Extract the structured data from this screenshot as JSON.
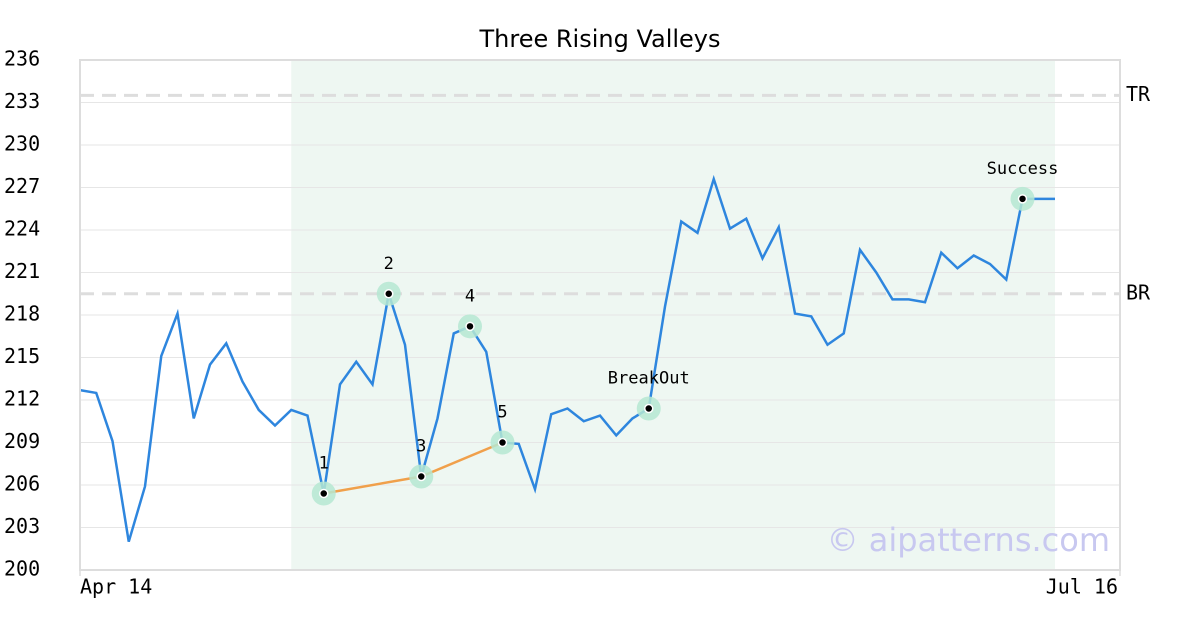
{
  "chart_data": {
    "type": "line",
    "title": "Three Rising Valleys",
    "x": [
      0,
      1,
      2,
      3,
      4,
      5,
      6,
      7,
      8,
      9,
      10,
      11,
      12,
      13,
      14,
      15,
      16,
      17,
      18,
      19,
      20,
      21,
      22,
      23,
      24,
      25,
      26,
      27,
      28,
      29,
      30,
      31,
      32,
      33,
      34,
      35,
      36,
      37,
      38,
      39,
      40,
      41,
      42,
      43,
      44,
      45,
      46,
      47,
      48,
      49,
      50,
      51,
      52,
      53,
      54,
      55,
      56,
      57,
      58,
      59,
      60
    ],
    "series": [
      {
        "color": "#2e86de",
        "values": [
          212.7,
          212.5,
          209.1,
          202.0,
          205.9,
          215.1,
          218.1,
          210.7,
          214.5,
          216.0,
          213.3,
          211.3,
          210.2,
          211.3,
          210.9,
          205.4,
          213.1,
          214.7,
          213.1,
          219.5,
          215.9,
          206.6,
          210.7,
          216.7,
          217.2,
          215.4,
          209.0,
          208.9,
          205.7,
          211.0,
          211.4,
          210.5,
          210.9,
          209.5,
          210.7,
          211.4,
          218.6,
          224.6,
          223.8,
          227.6,
          224.1,
          224.8,
          222.0,
          224.2,
          218.1,
          217.9,
          215.9,
          216.7,
          222.6,
          221.0,
          219.1,
          219.1,
          218.9,
          222.4,
          221.3,
          222.2,
          221.6,
          220.5,
          226.2,
          226.2,
          226.2
        ]
      }
    ],
    "xlim": [
      0,
      64
    ],
    "xticks": [
      {
        "value": 0,
        "label": "Apr 14"
      },
      {
        "value": 64,
        "label": "Jul 16"
      }
    ],
    "ylim": [
      200,
      236
    ],
    "yticks": [
      200,
      203,
      206,
      209,
      212,
      215,
      218,
      221,
      224,
      227,
      230,
      233,
      236
    ],
    "grid": true,
    "shaded_range": [
      13,
      60
    ],
    "shade_color": "#eef7f2",
    "levels": [
      {
        "label": "TR",
        "value": 233.5
      },
      {
        "label": "BR",
        "value": 219.5
      }
    ],
    "markers": [
      {
        "label": "1",
        "x": 15
      },
      {
        "label": "2",
        "x": 19
      },
      {
        "label": "3",
        "x": 21
      },
      {
        "label": "4",
        "x": 24
      },
      {
        "label": "5",
        "x": 26
      },
      {
        "label": "BreakOut",
        "x": 35
      },
      {
        "label": "Success",
        "x": 58
      }
    ],
    "trendline": {
      "x": [
        15,
        21,
        26
      ],
      "color": "#f0a04b"
    },
    "watermark": "© aipatterns.com"
  }
}
